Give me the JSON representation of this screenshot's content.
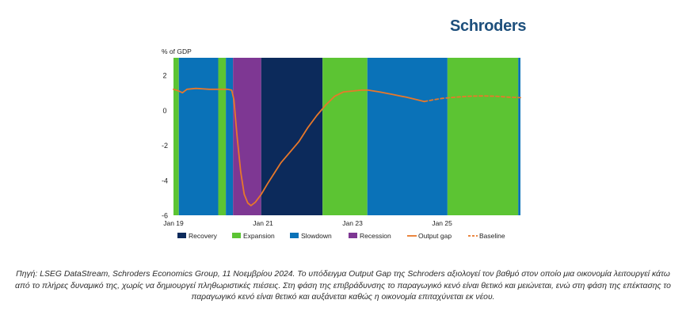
{
  "brand": {
    "logo_text": "Schroders",
    "logo_color": "#1d4f7c"
  },
  "caption": "Πηγή: LSEG DataStream, Schroders Economics Group, 11 Νοεμβρίου 2024. Το υπόδειγμα Output Gap της Schroders αξιολογεί τον βαθμό στον οποίο μια οικονομία λειτουργεί κάτω από το πλήρες δυναμικό της, χωρίς να δημιουργεί πληθωριστικές πιέσεις. Στη φάση της επιβράδυνσης το παραγωγικό κενό είναι θετικό και μειώνεται, ενώ στη φάση της επέκτασης το παραγωγικό κενό είναι θετικό και αυξάνεται καθώς η οικονομία επιταχύνεται εκ νέου.",
  "chart_data": {
    "type": "line",
    "ylabel": "% of GDP",
    "ylim": [
      -6,
      3
    ],
    "yticks": [
      2,
      0,
      -2,
      -4,
      -6
    ],
    "xlim": [
      2019.0,
      2026.75
    ],
    "xticks": [
      {
        "label": "Jan 19",
        "x": 2019.0
      },
      {
        "label": "Jan 21",
        "x": 2021.0
      },
      {
        "label": "Jan 23",
        "x": 2023.0
      },
      {
        "label": "Jan 25",
        "x": 2025.0
      }
    ],
    "phase_colors": {
      "Recovery": "#0c2a5b",
      "Expansion": "#5cc433",
      "Slowdown": "#0a72b8",
      "Recession": "#7e3793"
    },
    "phases": [
      {
        "phase": "Expansion",
        "start": 2019.0,
        "end": 2019.12
      },
      {
        "phase": "Slowdown",
        "start": 2019.12,
        "end": 2020.0
      },
      {
        "phase": "Expansion",
        "start": 2020.0,
        "end": 2020.17
      },
      {
        "phase": "Slowdown",
        "start": 2020.17,
        "end": 2020.33
      },
      {
        "phase": "Recession",
        "start": 2020.33,
        "end": 2020.96
      },
      {
        "phase": "Recovery",
        "start": 2020.96,
        "end": 2022.33
      },
      {
        "phase": "Expansion",
        "start": 2022.33,
        "end": 2023.33
      },
      {
        "phase": "Slowdown",
        "start": 2023.33,
        "end": 2025.12
      },
      {
        "phase": "Expansion",
        "start": 2025.12,
        "end": 2026.7
      },
      {
        "phase": "Slowdown",
        "start": 2026.7,
        "end": 2026.75
      }
    ],
    "series": [
      {
        "name": "Output gap",
        "color": "#e8782a",
        "style": "solid",
        "points": [
          [
            2019.0,
            1.2
          ],
          [
            2019.12,
            1.1
          ],
          [
            2019.2,
            1.0
          ],
          [
            2019.3,
            1.2
          ],
          [
            2019.5,
            1.25
          ],
          [
            2019.8,
            1.2
          ],
          [
            2020.0,
            1.2
          ],
          [
            2020.2,
            1.2
          ],
          [
            2020.3,
            1.15
          ],
          [
            2020.35,
            0.6
          ],
          [
            2020.42,
            -1.5
          ],
          [
            2020.5,
            -3.5
          ],
          [
            2020.58,
            -4.8
          ],
          [
            2020.66,
            -5.3
          ],
          [
            2020.73,
            -5.45
          ],
          [
            2020.83,
            -5.25
          ],
          [
            2020.96,
            -4.8
          ],
          [
            2021.1,
            -4.2
          ],
          [
            2021.25,
            -3.6
          ],
          [
            2021.4,
            -3.0
          ],
          [
            2021.6,
            -2.4
          ],
          [
            2021.8,
            -1.8
          ],
          [
            2022.0,
            -1.0
          ],
          [
            2022.2,
            -0.3
          ],
          [
            2022.4,
            0.3
          ],
          [
            2022.6,
            0.8
          ],
          [
            2022.8,
            1.05
          ],
          [
            2023.0,
            1.1
          ],
          [
            2023.2,
            1.15
          ],
          [
            2023.35,
            1.15
          ],
          [
            2023.6,
            1.05
          ],
          [
            2023.9,
            0.9
          ],
          [
            2024.2,
            0.75
          ],
          [
            2024.45,
            0.6
          ],
          [
            2024.6,
            0.5
          ]
        ]
      },
      {
        "name": "Baseline",
        "color": "#e8782a",
        "style": "dashed",
        "points": [
          [
            2024.6,
            0.5
          ],
          [
            2024.8,
            0.6
          ],
          [
            2025.0,
            0.68
          ],
          [
            2025.3,
            0.75
          ],
          [
            2025.6,
            0.8
          ],
          [
            2025.9,
            0.82
          ],
          [
            2026.2,
            0.8
          ],
          [
            2026.5,
            0.75
          ],
          [
            2026.75,
            0.72
          ]
        ]
      }
    ],
    "legend": [
      {
        "label": "Recovery",
        "kind": "box",
        "color": "#0c2a5b"
      },
      {
        "label": "Expansion",
        "kind": "box",
        "color": "#5cc433"
      },
      {
        "label": "Slowdown",
        "kind": "box",
        "color": "#0a72b8"
      },
      {
        "label": "Recession",
        "kind": "box",
        "color": "#7e3793"
      },
      {
        "label": "Output gap",
        "kind": "line",
        "color": "#e8782a"
      },
      {
        "label": "Baseline",
        "kind": "dash",
        "color": "#e8782a"
      }
    ],
    "legend_position": "bottom"
  }
}
